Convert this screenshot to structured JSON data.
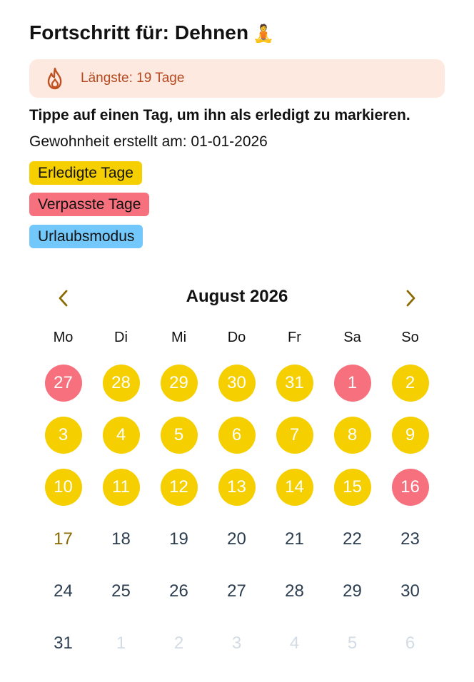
{
  "header": {
    "title": "Fortschritt für: Dehnen",
    "title_emoji": "🧘"
  },
  "streak": {
    "icon": "flame-icon",
    "text": "Längste: 19 Tage",
    "color": "#b5481f",
    "background": "#fde9df"
  },
  "instruction": "Tippe auf einen Tag, um ihn als erledigt zu markieren.",
  "created": "Gewohnheit erstellt am: 01-01-2026",
  "legend": {
    "done": {
      "label": "Erledigte Tage",
      "color": "#f5cf00"
    },
    "missed": {
      "label": "Verpasste Tage",
      "color": "#f7707e"
    },
    "vacation": {
      "label": "Urlaubsmodus",
      "color": "#72c7fb"
    }
  },
  "calendar": {
    "month_label": "August 2026",
    "prev_icon": "chevron-left-icon",
    "next_icon": "chevron-right-icon",
    "accent": "#8a6a00",
    "weekdays": [
      "Mo",
      "Di",
      "Mi",
      "Do",
      "Fr",
      "Sa",
      "So"
    ],
    "days": [
      {
        "label": "27",
        "status": "missed"
      },
      {
        "label": "28",
        "status": "done"
      },
      {
        "label": "29",
        "status": "done"
      },
      {
        "label": "30",
        "status": "done"
      },
      {
        "label": "31",
        "status": "done"
      },
      {
        "label": "1",
        "status": "missed"
      },
      {
        "label": "2",
        "status": "done"
      },
      {
        "label": "3",
        "status": "done"
      },
      {
        "label": "4",
        "status": "done"
      },
      {
        "label": "5",
        "status": "done"
      },
      {
        "label": "6",
        "status": "done"
      },
      {
        "label": "7",
        "status": "done"
      },
      {
        "label": "8",
        "status": "done"
      },
      {
        "label": "9",
        "status": "done"
      },
      {
        "label": "10",
        "status": "done"
      },
      {
        "label": "11",
        "status": "done"
      },
      {
        "label": "12",
        "status": "done"
      },
      {
        "label": "13",
        "status": "done"
      },
      {
        "label": "14",
        "status": "done"
      },
      {
        "label": "15",
        "status": "done"
      },
      {
        "label": "16",
        "status": "missed"
      },
      {
        "label": "17",
        "status": "today"
      },
      {
        "label": "18",
        "status": "none"
      },
      {
        "label": "19",
        "status": "none"
      },
      {
        "label": "20",
        "status": "none"
      },
      {
        "label": "21",
        "status": "none"
      },
      {
        "label": "22",
        "status": "none"
      },
      {
        "label": "23",
        "status": "none"
      },
      {
        "label": "24",
        "status": "none"
      },
      {
        "label": "25",
        "status": "none"
      },
      {
        "label": "26",
        "status": "none"
      },
      {
        "label": "27",
        "status": "none"
      },
      {
        "label": "28",
        "status": "none"
      },
      {
        "label": "29",
        "status": "none"
      },
      {
        "label": "30",
        "status": "none"
      },
      {
        "label": "31",
        "status": "none"
      },
      {
        "label": "1",
        "status": "other"
      },
      {
        "label": "2",
        "status": "other"
      },
      {
        "label": "3",
        "status": "other"
      },
      {
        "label": "4",
        "status": "other"
      },
      {
        "label": "5",
        "status": "other"
      },
      {
        "label": "6",
        "status": "other"
      }
    ]
  }
}
